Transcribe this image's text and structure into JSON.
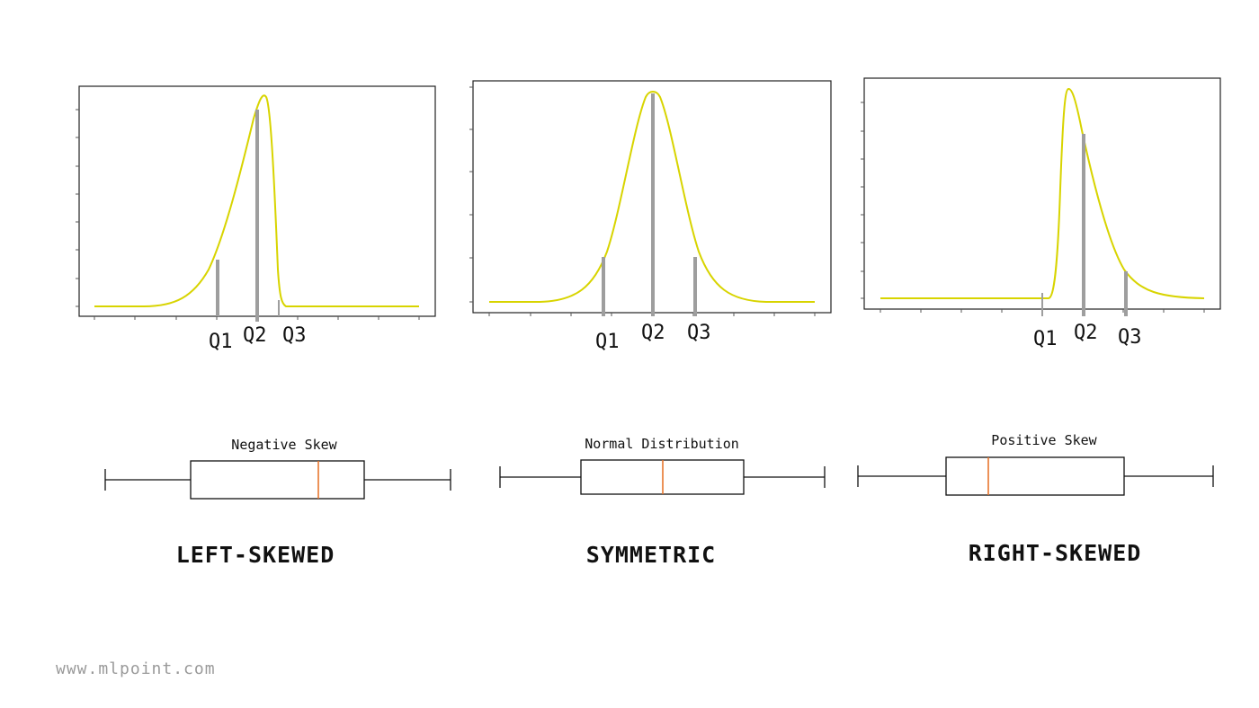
{
  "colors": {
    "curve": "#d8d400",
    "quartile_line": "#9e9e9e",
    "median_line": "#e8762e",
    "frame": "#222222",
    "footer": "#9a9a9a"
  },
  "panels": [
    {
      "id": "left",
      "q_labels": [
        "Q1",
        "Q2",
        "Q3"
      ],
      "box_title": "Negative Skew",
      "caption": "LEFT-SKEWED"
    },
    {
      "id": "symmetric",
      "q_labels": [
        "Q1",
        "Q2",
        "Q3"
      ],
      "box_title": "Normal Distribution",
      "caption": "SYMMETRIC"
    },
    {
      "id": "right",
      "q_labels": [
        "Q1",
        "Q2",
        "Q3"
      ],
      "box_title": "Positive Skew",
      "caption": "RIGHT-SKEWED"
    }
  ],
  "footer": {
    "site": "www.mlpoint.com"
  }
}
